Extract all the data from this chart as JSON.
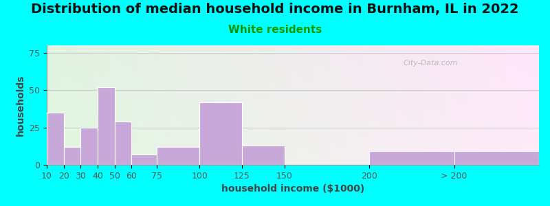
{
  "title": "Distribution of median household income in Burnham, IL in 2022",
  "subtitle": "White residents",
  "xlabel": "household income ($1000)",
  "ylabel": "households",
  "background_outer": "#00FFFF",
  "bar_color": "#C8A8D8",
  "bar_edge_color": "#FFFFFF",
  "categories": [
    "10",
    "20",
    "30",
    "40",
    "50",
    "60",
    "75",
    "100",
    "125",
    "150",
    "200",
    "> 200"
  ],
  "values": [
    35,
    12,
    25,
    52,
    29,
    7,
    12,
    42,
    13,
    0,
    9,
    9
  ],
  "bar_lefts": [
    10,
    20,
    30,
    40,
    50,
    60,
    75,
    100,
    125,
    150,
    200,
    250
  ],
  "bar_widths": [
    10,
    10,
    10,
    10,
    10,
    15,
    25,
    25,
    25,
    50,
    50,
    50
  ],
  "xtick_positions": [
    10,
    20,
    30,
    40,
    50,
    60,
    75,
    100,
    125,
    150,
    200,
    250
  ],
  "xtick_labels": [
    "10",
    "20",
    "30",
    "40",
    "50",
    "60",
    "75",
    "100",
    "125",
    "150",
    "200",
    "> 200"
  ],
  "xlim": [
    10,
    300
  ],
  "ylim": [
    0,
    80
  ],
  "yticks": [
    0,
    25,
    50,
    75
  ],
  "title_fontsize": 14,
  "subtitle_fontsize": 11,
  "subtitle_color": "#009900",
  "axis_label_fontsize": 10,
  "tick_fontsize": 9,
  "watermark": "City-Data.com",
  "grid_color": "#CCCCCC",
  "title_color": "#111111"
}
